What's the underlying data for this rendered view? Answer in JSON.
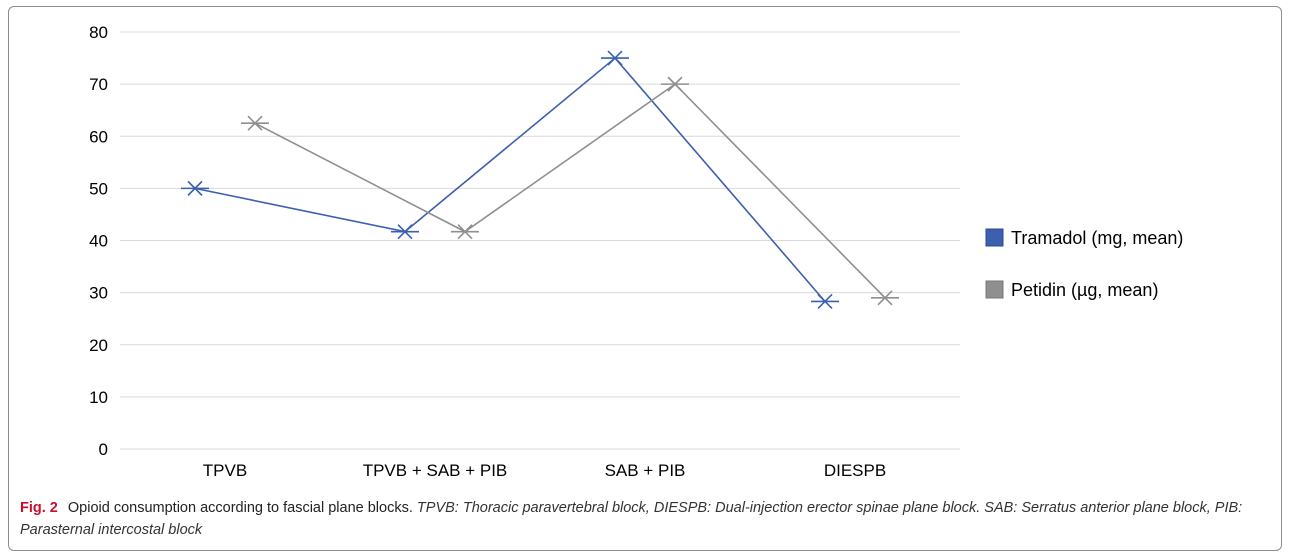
{
  "chart_data": {
    "type": "line",
    "categories": [
      "TPVB",
      "TPVB + SAB + PIB",
      "SAB + PIB",
      "DIESPB"
    ],
    "series": [
      {
        "name": "Tramadol (mg, mean)",
        "values": [
          50,
          41.7,
          75,
          28.3
        ],
        "color": "#3c5fae"
      },
      {
        "name": "Petidin (µg, mean)",
        "values": [
          62.5,
          41.7,
          70,
          29
        ],
        "color": "#8f8f8f"
      }
    ],
    "y_ticks": [
      0,
      10,
      20,
      30,
      40,
      50,
      60,
      70,
      80
    ],
    "ylim": [
      0,
      80
    ],
    "grid": true,
    "legend_position": "right",
    "marker": "x"
  },
  "caption": {
    "fig_label": "Fig. 2",
    "description": "Opioid consumption according to fascial plane blocks.",
    "abbreviations": "TPVB: Thoracic paravertebral block, DIESPB: Dual-injection erector spinae plane block. SAB: Serratus anterior plane block, PIB: Parasternal intercostal block"
  }
}
